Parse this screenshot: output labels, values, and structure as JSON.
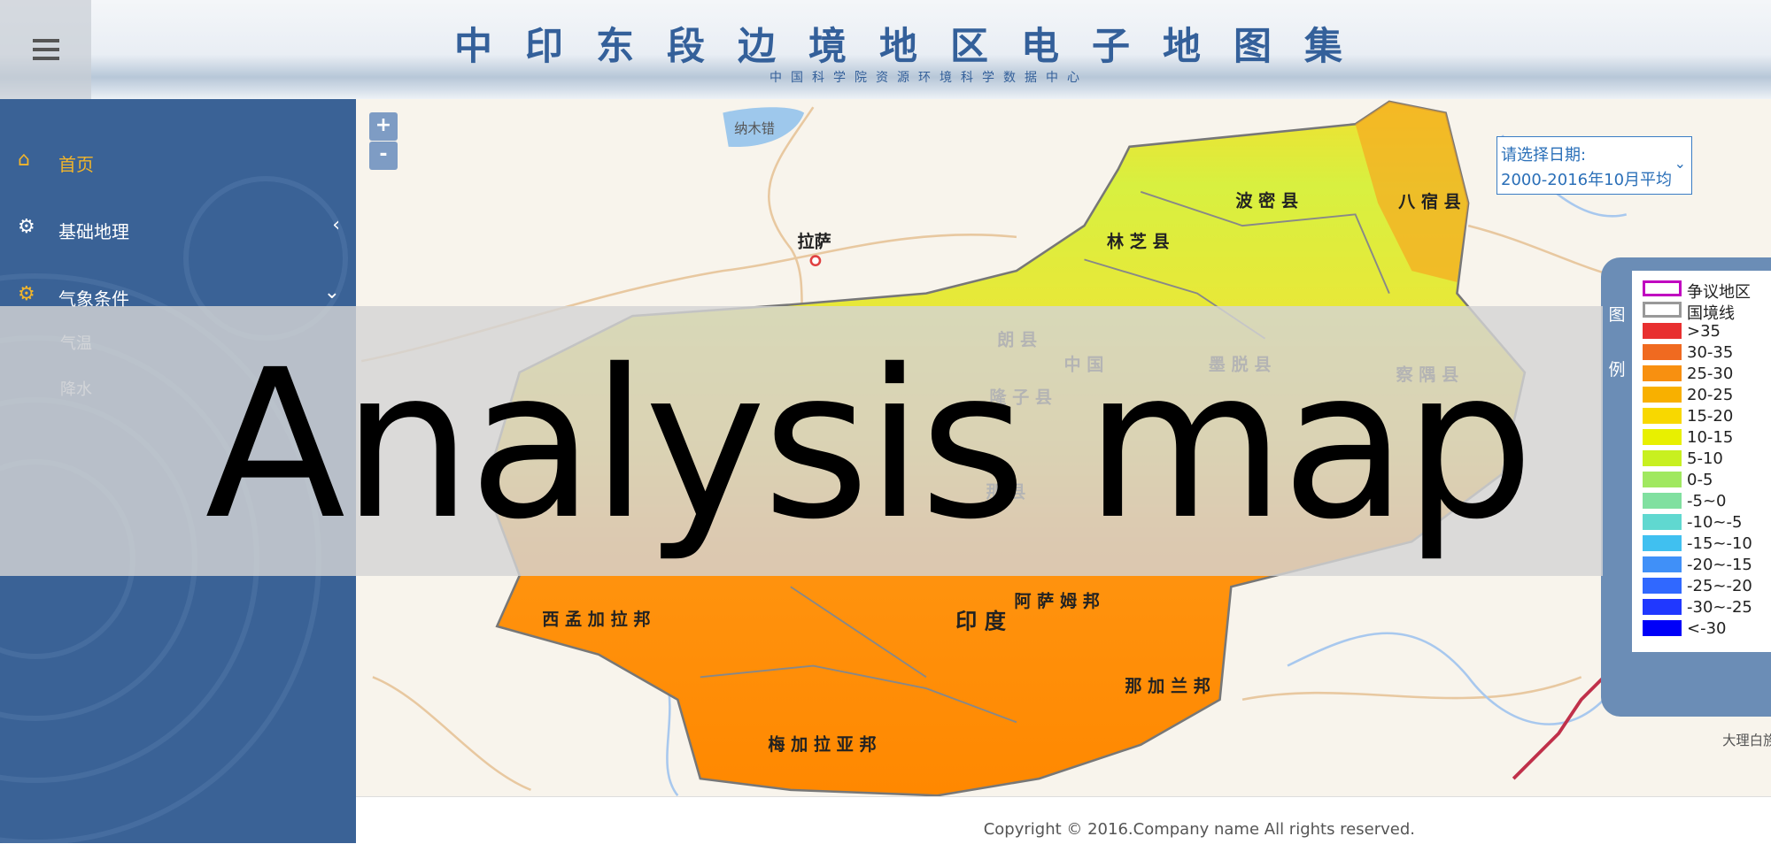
{
  "header": {
    "title": "中印东段边境地区电子地图集",
    "subtitle": "中国科学院资源环境科学数据中心"
  },
  "sidebar": {
    "items": [
      {
        "label": "首页"
      },
      {
        "label": "基础地理"
      },
      {
        "label": "气象条件",
        "children": [
          "气温",
          "降水"
        ]
      }
    ]
  },
  "map": {
    "zoom_in": "+",
    "zoom_out": "-",
    "date_select": {
      "label": "请选择日期:",
      "value": "2000-2016年10月平均"
    },
    "labels": [
      "纳木错",
      "拉萨",
      "波 密 县",
      "八 宿 县",
      "林 芝 县",
      "中 国",
      "墨 脱 县",
      "察 隅 县",
      "朗 县",
      "隆 子 县",
      "那 县",
      "印 度",
      "阿 萨 姆 邦",
      "西 孟 加 拉 邦",
      "那 加 兰 邦",
      "梅 加 拉 亚 邦",
      "大理白族"
    ],
    "legend": {
      "title": [
        "图",
        "例"
      ],
      "items": [
        {
          "label": "争议地区",
          "color": "#c000c0",
          "kind": "outline"
        },
        {
          "label": "国境线",
          "color": "#999999",
          "kind": "outline"
        },
        {
          "label": ">35",
          "color": "#e83030",
          "kind": "fill"
        },
        {
          "label": "30-35",
          "color": "#f06a20",
          "kind": "fill"
        },
        {
          "label": "25-30",
          "color": "#f89010",
          "kind": "fill"
        },
        {
          "label": "20-25",
          "color": "#f8b000",
          "kind": "fill"
        },
        {
          "label": "15-20",
          "color": "#f8d800",
          "kind": "fill"
        },
        {
          "label": "10-15",
          "color": "#e8f000",
          "kind": "fill"
        },
        {
          "label": "5-10",
          "color": "#c8f020",
          "kind": "fill"
        },
        {
          "label": "0-5",
          "color": "#a0e860",
          "kind": "fill"
        },
        {
          "label": "-5~0",
          "color": "#80e0a0",
          "kind": "fill"
        },
        {
          "label": "-10~-5",
          "color": "#60d8d0",
          "kind": "fill"
        },
        {
          "label": "-15~-10",
          "color": "#40c0f0",
          "kind": "fill"
        },
        {
          "label": "-20~-15",
          "color": "#4090f8",
          "kind": "fill"
        },
        {
          "label": "-25~-20",
          "color": "#3068ff",
          "kind": "fill"
        },
        {
          "label": "-30~-25",
          "color": "#2038ff",
          "kind": "fill"
        },
        {
          "label": "<-30",
          "color": "#0000f8",
          "kind": "fill"
        }
      ]
    }
  },
  "footer": {
    "copyright": "Copyright © 2016.Company name All rights reserved."
  },
  "overlay": {
    "text": "Analysis map"
  }
}
